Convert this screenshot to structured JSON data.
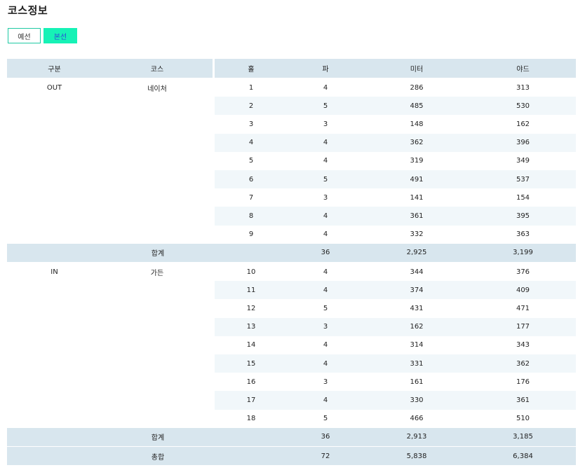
{
  "page": {
    "title": "코스정보"
  },
  "tabs": [
    {
      "label": "예선"
    },
    {
      "label": "본선"
    }
  ],
  "table": {
    "headers": [
      "구분",
      "코스",
      "홀",
      "파",
      "미터",
      "야드"
    ],
    "sections": [
      {
        "division": "OUT",
        "course": "네이처",
        "holes": [
          {
            "hole": "1",
            "par": "4",
            "meter": "286",
            "yard": "313"
          },
          {
            "hole": "2",
            "par": "5",
            "meter": "485",
            "yard": "530"
          },
          {
            "hole": "3",
            "par": "3",
            "meter": "148",
            "yard": "162"
          },
          {
            "hole": "4",
            "par": "4",
            "meter": "362",
            "yard": "396"
          },
          {
            "hole": "5",
            "par": "4",
            "meter": "319",
            "yard": "349"
          },
          {
            "hole": "6",
            "par": "5",
            "meter": "491",
            "yard": "537"
          },
          {
            "hole": "7",
            "par": "3",
            "meter": "141",
            "yard": "154"
          },
          {
            "hole": "8",
            "par": "4",
            "meter": "361",
            "yard": "395"
          },
          {
            "hole": "9",
            "par": "4",
            "meter": "332",
            "yard": "363"
          }
        ],
        "subtotal": {
          "label": "합계",
          "par": "36",
          "meter": "2,925",
          "yard": "3,199"
        }
      },
      {
        "division": "IN",
        "course": "가든",
        "holes": [
          {
            "hole": "10",
            "par": "4",
            "meter": "344",
            "yard": "376"
          },
          {
            "hole": "11",
            "par": "4",
            "meter": "374",
            "yard": "409"
          },
          {
            "hole": "12",
            "par": "5",
            "meter": "431",
            "yard": "471"
          },
          {
            "hole": "13",
            "par": "3",
            "meter": "162",
            "yard": "177"
          },
          {
            "hole": "14",
            "par": "4",
            "meter": "314",
            "yard": "343"
          },
          {
            "hole": "15",
            "par": "4",
            "meter": "331",
            "yard": "362"
          },
          {
            "hole": "16",
            "par": "3",
            "meter": "161",
            "yard": "176"
          },
          {
            "hole": "17",
            "par": "4",
            "meter": "330",
            "yard": "361"
          },
          {
            "hole": "18",
            "par": "5",
            "meter": "466",
            "yard": "510"
          }
        ],
        "subtotal": {
          "label": "합계",
          "par": "36",
          "meter": "2,913",
          "yard": "3,185"
        }
      }
    ],
    "total": {
      "label": "총합",
      "par": "72",
      "meter": "5,838",
      "yard": "6,384"
    }
  }
}
